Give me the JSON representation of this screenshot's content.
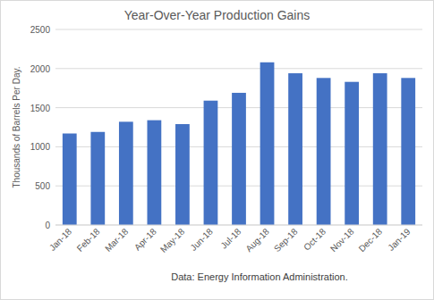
{
  "chart_data": {
    "type": "bar",
    "title": "Year-Over-Year Production Gains",
    "y_label": "Thousands of Barrels Per Day.",
    "annotations": [
      "Data: Energy Information Administration."
    ],
    "categories": [
      "Jan-18",
      "Feb-18",
      "Mar-18",
      "Apr-18",
      "May-18",
      "Jun-18",
      "Jul-18",
      "Aug-18",
      "Sep-18",
      "Oct-18",
      "Nov-18",
      "Dec-18",
      "Jan-19"
    ],
    "values": [
      1170,
      1190,
      1320,
      1340,
      1290,
      1590,
      1690,
      2080,
      1940,
      1880,
      1830,
      1940,
      1880
    ],
    "color": "#4472c4",
    "ylim": [
      0,
      2500
    ],
    "yticks": [
      0,
      500,
      1000,
      1500,
      2000,
      2500
    ],
    "grid": true
  }
}
